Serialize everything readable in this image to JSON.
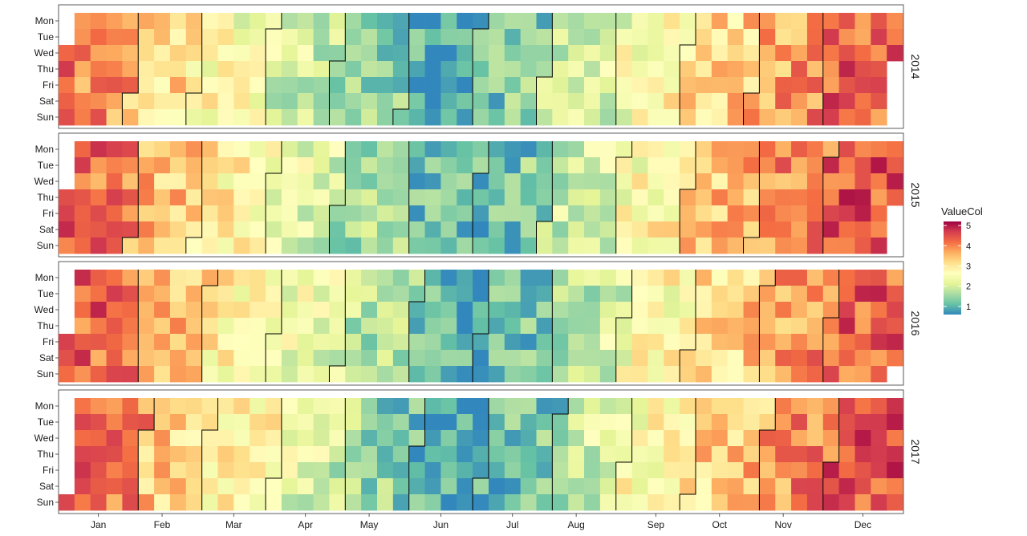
{
  "chart_data": {
    "type": "heatmap",
    "title": "",
    "xlabel": "",
    "ylabel": "",
    "weekdays": [
      "Mon",
      "Tue",
      "Wed",
      "Thu",
      "Fri",
      "Sat",
      "Sun"
    ],
    "months": [
      "Jan",
      "Feb",
      "Mar",
      "Apr",
      "May",
      "Jun",
      "Jul",
      "Aug",
      "Sep",
      "Oct",
      "Nov",
      "Dec"
    ],
    "legend": {
      "title": "ValueCol",
      "position": "right",
      "ticks": [
        "1",
        "2",
        "3",
        "4",
        "5"
      ],
      "range": [
        0.6,
        5.2
      ]
    },
    "colorscale": [
      "#3288bd",
      "#66c2a5",
      "#abdda4",
      "#e6f598",
      "#ffffbf",
      "#fee08b",
      "#fdae61",
      "#f46d43",
      "#d53e4f",
      "#9e0142"
    ],
    "series": [
      {
        "year": "2014",
        "start_weekday": 3,
        "days": 365,
        "monthly_level": [
          4.1,
          3.4,
          2.7,
          2.1,
          1.7,
          0.9,
          1.1,
          1.8,
          2.4,
          3.1,
          3.6,
          4.3
        ]
      },
      {
        "year": "2015",
        "start_weekday": 4,
        "days": 365,
        "monthly_level": [
          4.3,
          3.6,
          3.0,
          2.3,
          1.8,
          1.1,
          1.0,
          1.9,
          2.5,
          3.3,
          3.9,
          4.4
        ]
      },
      {
        "year": "2016",
        "start_weekday": 5,
        "days": 366,
        "monthly_level": [
          4.4,
          3.7,
          2.9,
          2.4,
          1.9,
          1.0,
          1.0,
          1.7,
          2.5,
          3.1,
          3.7,
          4.3
        ]
      },
      {
        "year": "2017",
        "start_weekday": 7,
        "days": 365,
        "monthly_level": [
          4.3,
          3.5,
          3.0,
          2.3,
          1.6,
          0.9,
          1.0,
          1.8,
          2.6,
          3.2,
          3.8,
          4.4
        ]
      }
    ]
  }
}
